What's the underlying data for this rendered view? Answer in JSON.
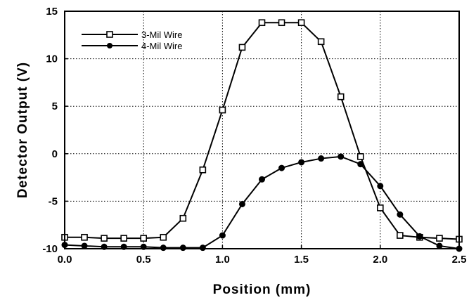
{
  "chart_data": {
    "type": "line",
    "xlabel": "Position  (mm)",
    "ylabel": "Detector  Output  (V)",
    "xlim": [
      0,
      2.5
    ],
    "ylim": [
      -10,
      15
    ],
    "xticks": [
      "0.0",
      "0.5",
      "1.0",
      "1.5",
      "2.0",
      "2.5"
    ],
    "yticks": [
      "-10",
      "-5",
      "0",
      "5",
      "10",
      "15"
    ],
    "grid": true,
    "legend_position": "top-left",
    "series": [
      {
        "name": "3-Mil Wire",
        "marker": "open-square",
        "x": [
          0.0,
          0.125,
          0.25,
          0.375,
          0.5,
          0.625,
          0.75,
          0.875,
          1.0,
          1.125,
          1.25,
          1.375,
          1.5,
          1.625,
          1.75,
          1.875,
          2.0,
          2.125,
          2.25,
          2.375,
          2.5
        ],
        "y": [
          -8.8,
          -8.8,
          -8.9,
          -8.9,
          -8.9,
          -8.8,
          -6.8,
          -1.7,
          4.6,
          11.2,
          13.8,
          13.8,
          13.8,
          11.8,
          6.0,
          -0.3,
          -5.7,
          -8.6,
          -8.8,
          -8.9,
          -9.0
        ]
      },
      {
        "name": "4-Mil Wire",
        "marker": "filled-circle",
        "x": [
          0.0,
          0.125,
          0.25,
          0.375,
          0.5,
          0.625,
          0.75,
          0.875,
          1.0,
          1.125,
          1.25,
          1.375,
          1.5,
          1.625,
          1.75,
          1.875,
          2.0,
          2.125,
          2.25,
          2.375,
          2.5
        ],
        "y": [
          -9.6,
          -9.7,
          -9.8,
          -9.8,
          -9.8,
          -9.9,
          -9.9,
          -9.9,
          -8.6,
          -5.3,
          -2.7,
          -1.5,
          -0.9,
          -0.5,
          -0.3,
          -1.1,
          -3.4,
          -6.4,
          -8.7,
          -9.7,
          -10.0
        ]
      }
    ]
  }
}
